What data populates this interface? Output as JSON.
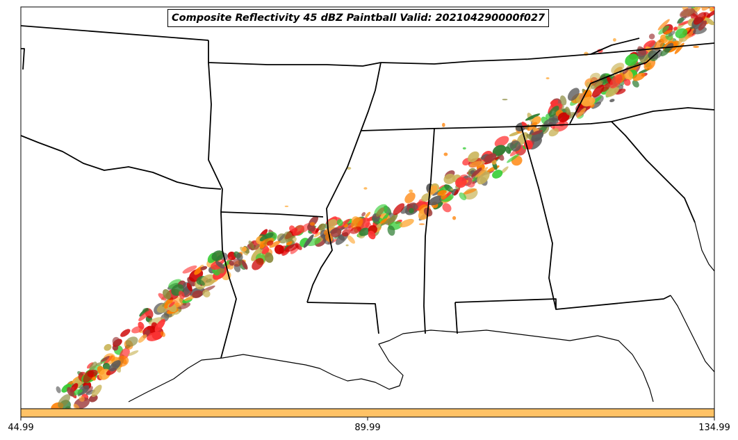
{
  "title": "Composite Reflectivity 45 dBZ Paintball Valid: 202104290000f027",
  "colorbar": {
    "color": "#ffc266",
    "ticks": [
      "44.99",
      "89.99",
      "134.99"
    ]
  },
  "paint_colors": [
    "#cc0000",
    "#ff3333",
    "#ff7f00",
    "#ffa733",
    "#2e7d32",
    "#33cc33",
    "#8a8a3c",
    "#9e3a3a",
    "#5a5a5a",
    "#c9b458"
  ]
}
